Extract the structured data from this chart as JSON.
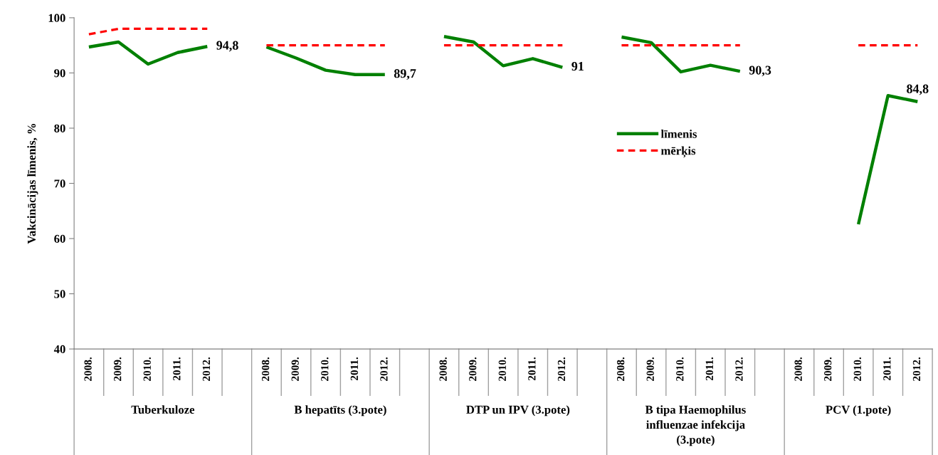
{
  "chart_data": {
    "type": "line",
    "ylabel": "Vakcinācijas līmenis, %",
    "categories": [
      "2008.",
      "2009.",
      "2010.",
      "2011.",
      "2012.",
      null,
      "2008.",
      "2009.",
      "2010.",
      "2011.",
      "2012.",
      null,
      "2008.",
      "2009.",
      "2010.",
      "2011.",
      "2012.",
      null,
      "2008.",
      "2009.",
      "2010.",
      "2011.",
      "2012.",
      null,
      "2008.",
      "2009.",
      "2010.",
      "2011.",
      "2012."
    ],
    "series": [
      {
        "name": "līmenis",
        "color": "#008000",
        "line_style": "solid",
        "values": [
          94.7,
          95.6,
          91.6,
          93.7,
          94.8,
          null,
          94.7,
          92.7,
          90.5,
          89.7,
          89.7,
          null,
          96.6,
          95.6,
          91.3,
          92.6,
          91,
          null,
          96.5,
          95.5,
          90.2,
          91.4,
          90.3,
          null,
          null,
          null,
          62.6,
          85.9,
          84.8
        ],
        "value_labels": [
          null,
          null,
          null,
          null,
          "94,8",
          null,
          null,
          null,
          null,
          null,
          "89,7",
          null,
          null,
          null,
          null,
          null,
          "91",
          null,
          null,
          null,
          null,
          null,
          "90,3",
          null,
          null,
          null,
          null,
          null,
          "84,8"
        ]
      },
      {
        "name": "mērķis",
        "color": "#ff0000",
        "line_style": "dashed",
        "values": [
          97,
          98,
          98,
          98,
          98,
          null,
          95,
          95,
          95,
          95,
          95,
          null,
          95,
          95,
          95,
          95,
          95,
          null,
          95,
          95,
          95,
          95,
          95,
          null,
          null,
          null,
          95,
          95,
          95
        ]
      }
    ],
    "annotations": [
      "Tuberkuloze",
      "B hepatīts (3.pote)",
      "DTP un IPV (3.pote)",
      "B tipa Haemophilus\ninfluenzae infekcija\n(3.pote)",
      "PCV (1.pote)"
    ],
    "ylim": [
      40,
      100
    ],
    "yticks": [
      40,
      50,
      60,
      70,
      80,
      90,
      100
    ],
    "grid": false,
    "legend": "right",
    "marker": "none"
  }
}
